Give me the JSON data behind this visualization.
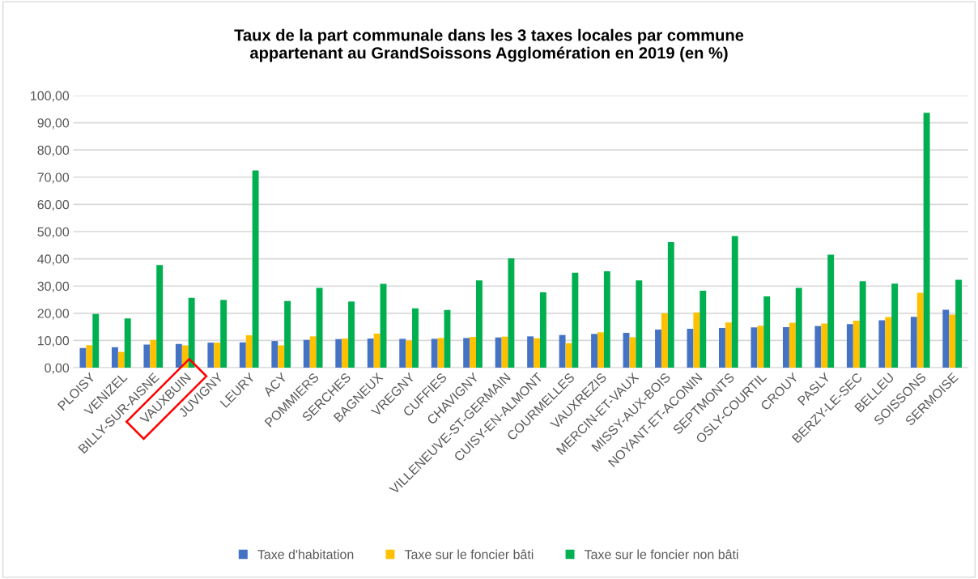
{
  "chart_data": {
    "type": "bar",
    "title": "Taux de la part communale dans les 3 taxes locales par commune\nappartenant au GrandSoissons Agglomération en 2019 (en %)",
    "categories": [
      "PLOISY",
      "VENIZEL",
      "BILLY-SUR-AISNE",
      "VAUXBUIN",
      "JUVIGNY",
      "LEURY",
      "ACY",
      "POMMIERS",
      "SERCHES",
      "BAGNEUX",
      "VREGNY",
      "CUFFIES",
      "CHAVIGNY",
      "VILLENEUVE-ST-GERMAIN",
      "CUISY-EN-ALMONT",
      "COURMELLES",
      "VAUXREZIS",
      "MERCIN-ET-VAUX",
      "MISSY-AUX-BOIS",
      "NOYANT-ET-ACONIN",
      "SEPTMONTS",
      "OSLY-COURTIL",
      "CROUY",
      "PASLY",
      "BERZY-LE-SEC",
      "BELLEU",
      "SOISSONS",
      "SERMOISE"
    ],
    "series": [
      {
        "name": "Taxe d'habitation",
        "color": "#4472c4",
        "values": [
          7.2,
          7.5,
          8.5,
          8.7,
          9.2,
          9.3,
          9.8,
          10.2,
          10.5,
          10.7,
          10.6,
          10.6,
          10.9,
          11.1,
          11.5,
          12.0,
          12.4,
          12.8,
          14.0,
          14.3,
          14.6,
          14.8,
          14.9,
          15.3,
          16.0,
          17.4,
          18.7,
          21.3
        ]
      },
      {
        "name": "Taxe sur le foncier bâti",
        "color": "#ffc000",
        "values": [
          8.3,
          5.8,
          10.2,
          8.2,
          9.2,
          11.9,
          8.2,
          11.5,
          10.7,
          12.5,
          10.0,
          10.9,
          11.3,
          11.4,
          10.8,
          9.0,
          13.0,
          11.2,
          20.0,
          20.3,
          16.6,
          15.4,
          16.5,
          16.2,
          17.3,
          18.6,
          27.5,
          19.5
        ]
      },
      {
        "name": "Taxe sur le foncier non bâti",
        "color": "#00b050",
        "values": [
          19.7,
          18.1,
          37.7,
          25.7,
          24.9,
          72.5,
          24.5,
          29.3,
          24.3,
          30.8,
          21.8,
          21.2,
          32.1,
          40.2,
          27.7,
          34.9,
          35.4,
          32.1,
          46.1,
          28.3,
          48.4,
          26.2,
          29.3,
          41.5,
          31.8,
          30.9,
          93.7,
          32.3
        ]
      }
    ],
    "ylim": [
      0,
      100
    ],
    "yticks": [
      {
        "value": 0,
        "label": "0,00"
      },
      {
        "value": 10,
        "label": "10,00"
      },
      {
        "value": 20,
        "label": "20,00"
      },
      {
        "value": 30,
        "label": "30,00"
      },
      {
        "value": 40,
        "label": "40,00"
      },
      {
        "value": 50,
        "label": "50,00"
      },
      {
        "value": 60,
        "label": "60,00"
      },
      {
        "value": 70,
        "label": "70,00"
      },
      {
        "value": 80,
        "label": "80,00"
      },
      {
        "value": 90,
        "label": "90,00"
      },
      {
        "value": 100,
        "label": "100,00"
      }
    ],
    "grid": "y",
    "legend": "bottom"
  }
}
